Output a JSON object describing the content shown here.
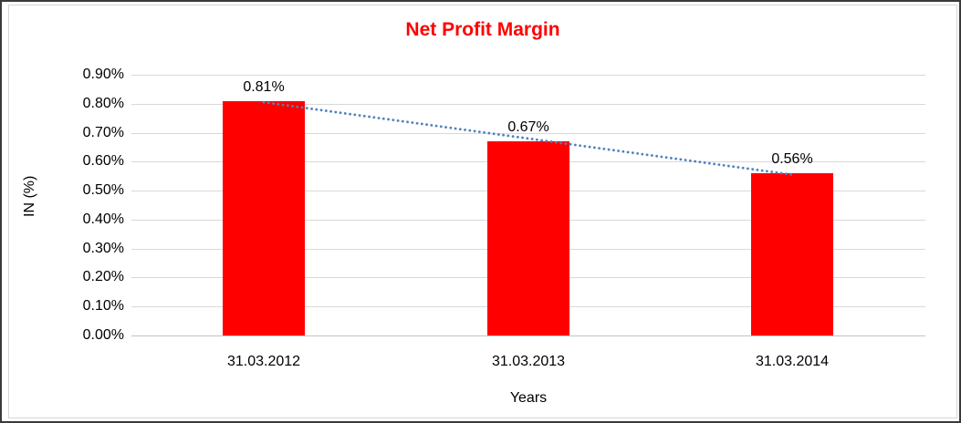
{
  "frame": {
    "background": "#FFFFFF",
    "outer_border_color": "#3A3A3A",
    "inner_border_color": "#D6D6D6"
  },
  "chart_data": {
    "type": "bar",
    "title": "Net Profit Margin",
    "title_color": "#FF0000",
    "xlabel": "Years",
    "ylabel": "IN (%)",
    "categories": [
      "31.03.2012",
      "31.03.2013",
      "31.03.2014"
    ],
    "values": [
      0.81,
      0.67,
      0.56
    ],
    "data_labels": [
      "0.81%",
      "0.67%",
      "0.56%"
    ],
    "bar_color": "#FF0000",
    "ylim": [
      0,
      0.9
    ],
    "ytick_labels_top_to_bottom": [
      "0.90%",
      "0.80%",
      "0.70%",
      "0.60%",
      "0.50%",
      "0.40%",
      "0.30%",
      "0.20%",
      "0.10%",
      "0.00%"
    ],
    "grid": true,
    "gridline_color": "#D9D9D9",
    "baseline_color": "#C4C4C4",
    "legend": "none",
    "trendline": {
      "type": "linear",
      "style": "dotted",
      "color": "#4F81BD",
      "endpoint_values": [
        0.805,
        0.555
      ]
    }
  }
}
